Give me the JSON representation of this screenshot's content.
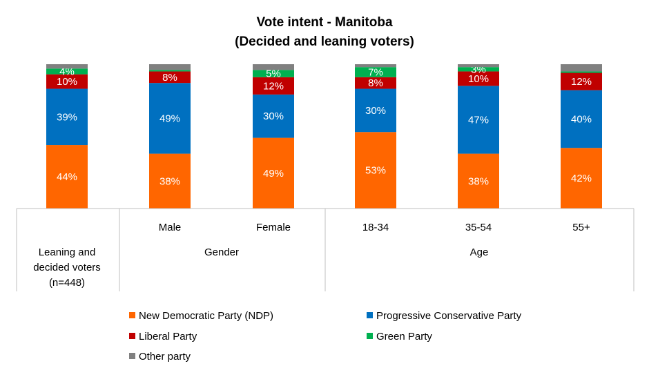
{
  "chart_data": {
    "type": "bar",
    "stacked": true,
    "title": "Vote intent - Manitoba",
    "subtitle": "(Decided and leaning voters)",
    "categories": [
      "",
      "Male",
      "Female",
      "18-34",
      "35-54",
      "55+"
    ],
    "groups": [
      {
        "label": [
          "Leaning and",
          "decided voters",
          "(n=448)"
        ],
        "categories": [
          ""
        ]
      },
      {
        "label": [
          "Gender"
        ],
        "categories": [
          "Male",
          "Female"
        ]
      },
      {
        "label": [
          "Age"
        ],
        "categories": [
          "18-34",
          "35-54",
          "55+"
        ]
      }
    ],
    "series": [
      {
        "name": "New Democratic Party (NDP)",
        "color": "#FF6600",
        "values": [
          44,
          38,
          49,
          53,
          38,
          42
        ],
        "labels": [
          "44%",
          "38%",
          "49%",
          "53%",
          "38%",
          "42%"
        ]
      },
      {
        "name": "Progressive Conservative Party",
        "color": "#0070C0",
        "values": [
          39,
          49,
          30,
          30,
          47,
          40
        ],
        "labels": [
          "39%",
          "49%",
          "30%",
          "30%",
          "47%",
          "40%"
        ]
      },
      {
        "name": "Liberal Party",
        "color": "#C00000",
        "values": [
          10,
          8,
          12,
          8,
          10,
          12
        ],
        "labels": [
          "10%",
          "8%",
          "12%",
          "8%",
          "10%",
          "12%"
        ]
      },
      {
        "name": "Green Party",
        "color": "#00B050",
        "values": [
          4,
          1,
          5,
          7,
          3,
          1
        ],
        "labels": [
          "4%",
          "",
          "5%",
          "7%",
          "3%",
          ""
        ]
      },
      {
        "name": "Other party",
        "color": "#808080",
        "values": [
          3,
          4,
          4,
          2,
          2,
          5
        ],
        "labels": [
          "",
          "",
          "",
          "",
          "",
          ""
        ]
      }
    ],
    "ylim": [
      0,
      100
    ],
    "grid": false,
    "legend_position": "bottom"
  }
}
